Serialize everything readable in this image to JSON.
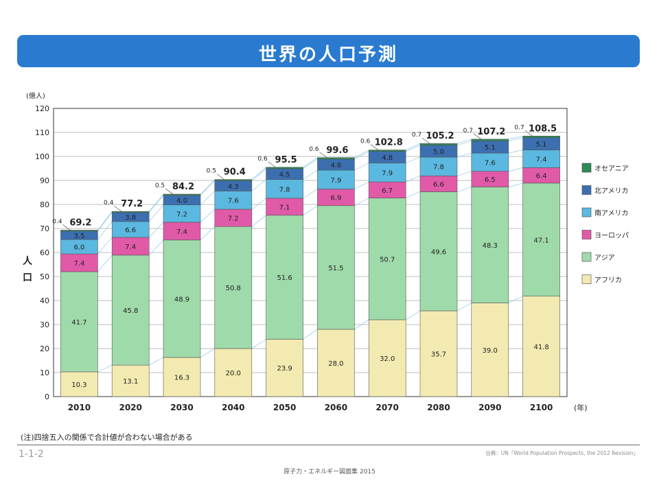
{
  "title": "世界の人口予測",
  "note": "(注)四捨五入の関係で合計値が合わない場合がある",
  "figure_code": "1-1-2",
  "source": "出典：UN「World Population Prospects, the 2012 Revision」",
  "footer": "原子力・エネルギー図面集 2015",
  "chart_data": {
    "type": "bar",
    "stacked": true,
    "categories": [
      "2010",
      "2020",
      "2030",
      "2040",
      "2050",
      "2060",
      "2070",
      "2080",
      "2090",
      "2100"
    ],
    "x_unit": "(年)",
    "y_unit": "(億人)",
    "ylabel": "人口",
    "ylim": [
      0,
      120
    ],
    "yticks": [
      0,
      10,
      20,
      30,
      40,
      50,
      60,
      70,
      80,
      90,
      100,
      110,
      120
    ],
    "grid": true,
    "legend_position": "right",
    "series": [
      {
        "name": "アフリカ",
        "color": "#f2eab0",
        "values": [
          10.3,
          13.1,
          16.3,
          20.0,
          23.9,
          28.0,
          32.0,
          35.7,
          39.0,
          41.8
        ],
        "labels": [
          "10.3",
          "13.1",
          "16.3",
          "20.0",
          "23.9",
          "28.0",
          "32.0",
          "35.7",
          "39.0",
          "41.8"
        ]
      },
      {
        "name": "アジア",
        "color": "#9fdaaa",
        "values": [
          41.7,
          45.8,
          48.9,
          50.8,
          51.6,
          51.5,
          50.7,
          49.6,
          48.3,
          47.1
        ],
        "labels": [
          "41.7",
          "45.8",
          "48.9",
          "50.8",
          "51.6",
          "51.5",
          "50.7",
          "49.6",
          "48.3",
          "47.1"
        ]
      },
      {
        "name": "ヨーロッパ",
        "color": "#e05aa8",
        "values": [
          7.4,
          7.4,
          7.4,
          7.2,
          7.1,
          6.9,
          6.7,
          6.6,
          6.5,
          6.4
        ],
        "labels": [
          "7.4",
          "7.4",
          "7.4",
          "7.2",
          "7.1",
          "6.9",
          "6.7",
          "6.6",
          "6.5",
          "6.4"
        ]
      },
      {
        "name": "南アメリカ",
        "color": "#5bb8e0",
        "values": [
          6.0,
          6.6,
          7.2,
          7.6,
          7.8,
          7.9,
          7.9,
          7.8,
          7.6,
          7.4
        ],
        "labels": [
          "6.0",
          "6.6",
          "7.2",
          "7.6",
          "7.8",
          "7.9",
          "7.9",
          "7.8",
          "7.6",
          "7.4"
        ]
      },
      {
        "name": "北アメリカ",
        "color": "#3c6fb0",
        "values": [
          3.5,
          3.8,
          4.0,
          4.3,
          4.5,
          4.6,
          4.8,
          5.0,
          5.1,
          5.1
        ],
        "labels": [
          "3.5",
          "3.8",
          "4.0",
          "4.3",
          "4.5",
          "4.6",
          "4.8",
          "5.0",
          "5.1",
          "5.1"
        ]
      },
      {
        "name": "オセアニア",
        "color": "#2e8a55",
        "values": [
          0.4,
          0.4,
          0.5,
          0.5,
          0.6,
          0.6,
          0.6,
          0.7,
          0.7,
          0.7
        ],
        "labels": [
          "0.4",
          "0.4",
          "0.5",
          "0.5",
          "0.6",
          "0.6",
          "0.6",
          "0.7",
          "0.7",
          "0.7"
        ]
      }
    ],
    "legend_order": [
      "オセアニア",
      "北アメリカ",
      "南アメリカ",
      "ヨーロッパ",
      "アジア",
      "アフリカ"
    ],
    "totals": [
      "69.2",
      "77.2",
      "84.2",
      "90.4",
      "95.5",
      "99.6",
      "102.8",
      "105.2",
      "107.2",
      "108.5"
    ]
  }
}
